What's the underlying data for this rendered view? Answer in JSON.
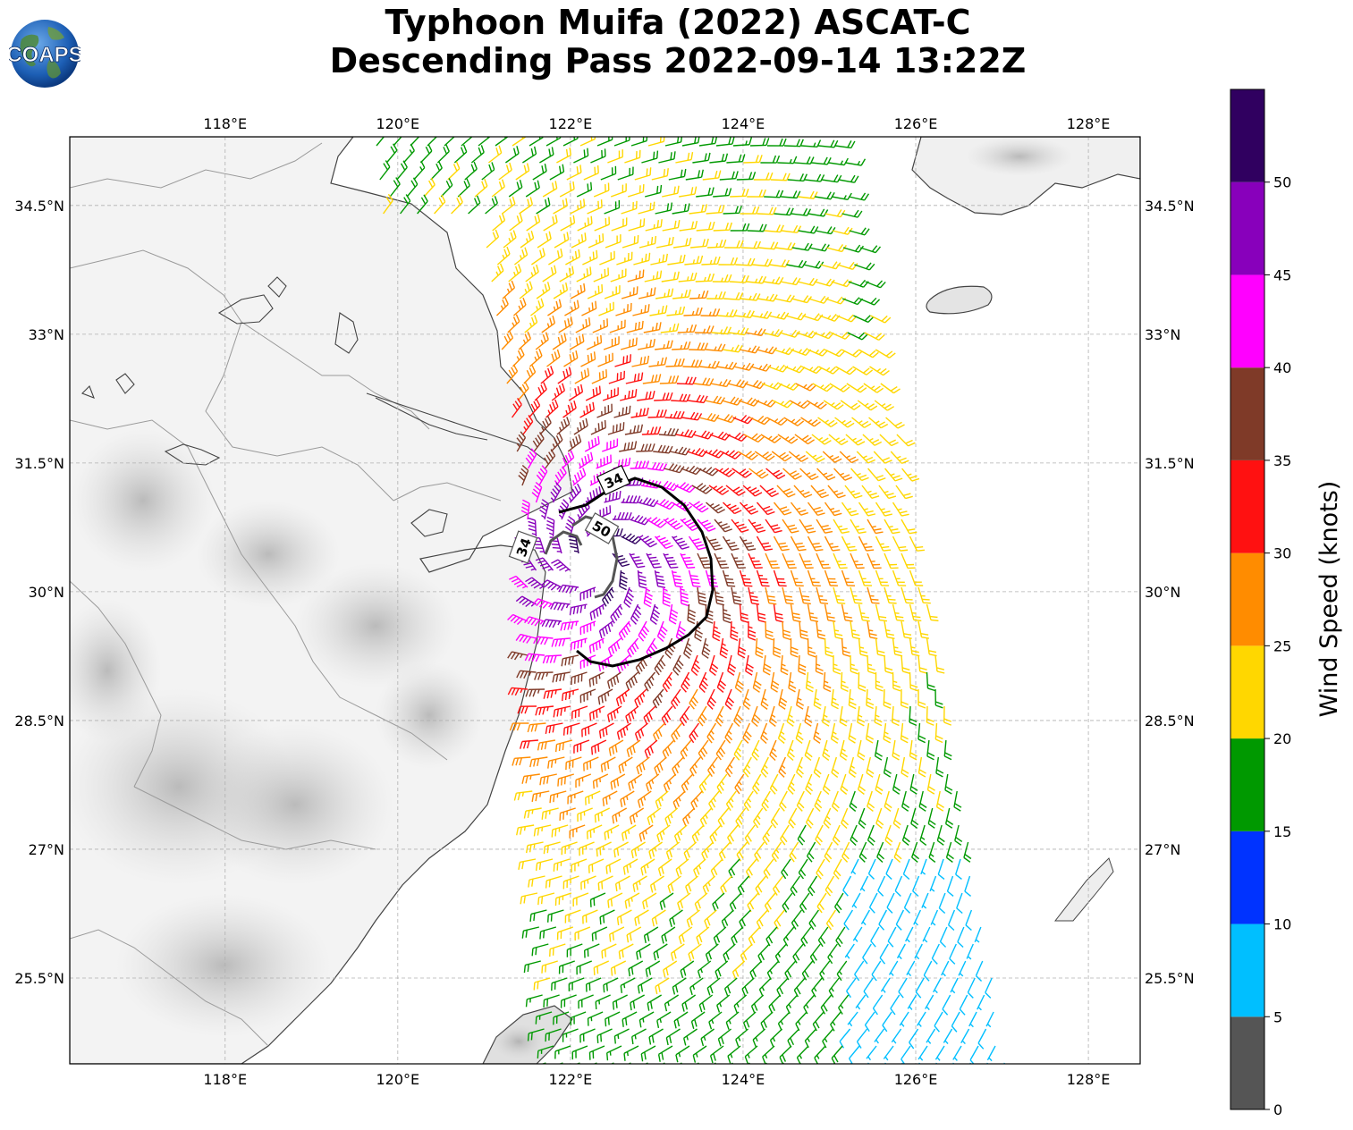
{
  "title": {
    "line1": "Typhoon Muifa (2022) ASCAT-C",
    "line2": "Descending Pass 2022-09-14 13:22Z"
  },
  "logo": {
    "text": "COAPS",
    "icon": "globe-icon"
  },
  "map": {
    "lon_range": [
      116.2,
      128.6
    ],
    "lat_range": [
      24.5,
      35.3
    ],
    "lon_ticks": [
      "118°E",
      "120°E",
      "122°E",
      "124°E",
      "126°E",
      "128°E"
    ],
    "lon_values": [
      118,
      120,
      122,
      124,
      126,
      128
    ],
    "lat_ticks": [
      "34.5°N",
      "33°N",
      "31.5°N",
      "30°N",
      "28.5°N",
      "27°N",
      "25.5°N"
    ],
    "lat_values": [
      34.5,
      33,
      31.5,
      30,
      28.5,
      27,
      25.5
    ],
    "grid": true,
    "storm_center": {
      "lon": 122.3,
      "lat": 30.4
    },
    "contours": [
      {
        "label": "34",
        "color": "#000000",
        "value": 34
      },
      {
        "label": "50",
        "color": "#555555",
        "value": 50
      },
      {
        "label": "34",
        "color": "#555555",
        "value": 34
      }
    ]
  },
  "colorbar": {
    "label": "Wind Speed (knots)",
    "ticks": [
      "0",
      "5",
      "10",
      "15",
      "20",
      "25",
      "30",
      "35",
      "40",
      "45",
      "50"
    ],
    "colors": [
      "#555555",
      "#00bfff",
      "#0033ff",
      "#009900",
      "#ffd700",
      "#ff8c00",
      "#ff1111",
      "#7f3a28",
      "#ff00ff",
      "#8800bb",
      "#300060"
    ],
    "max": 55
  }
}
